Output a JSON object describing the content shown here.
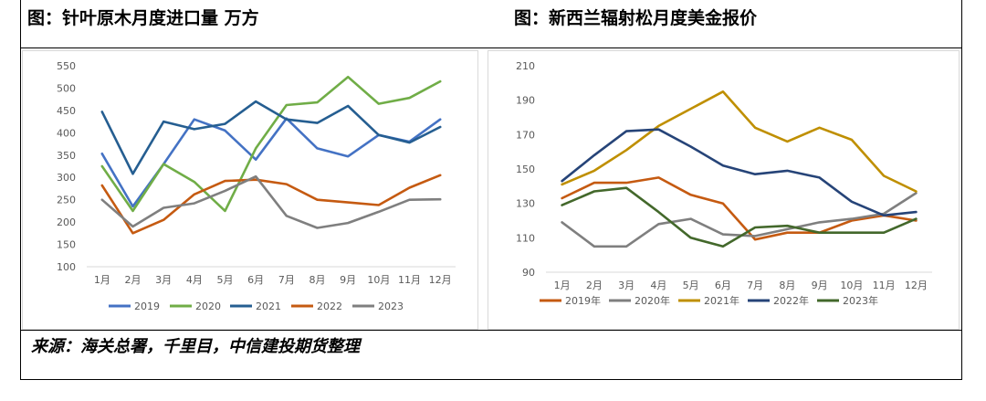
{
  "header": {
    "left_title": "图：针叶原木月度进口量  万方",
    "right_title": "图：新西兰辐射松月度美金报价"
  },
  "source_note": "来源：海关总署，千里目，中信建投期货整理",
  "chart_data": [
    {
      "type": "line",
      "title": "",
      "categories": [
        "1月",
        "2月",
        "3月",
        "4月",
        "5月",
        "6月",
        "7月",
        "8月",
        "9月",
        "10月",
        "11月",
        "12月"
      ],
      "ylim": [
        100,
        550
      ],
      "yticks": [
        100,
        150,
        200,
        250,
        300,
        350,
        400,
        450,
        500,
        550
      ],
      "grid": false,
      "legend": "bottom",
      "series": [
        {
          "name": "2019",
          "color": "#4472C4",
          "values": [
            353,
            235,
            330,
            430,
            405,
            340,
            432,
            365,
            347,
            395,
            380,
            430
          ]
        },
        {
          "name": "2020",
          "color": "#70AD47",
          "values": [
            325,
            225,
            330,
            290,
            225,
            365,
            462,
            468,
            525,
            465,
            478,
            515
          ]
        },
        {
          "name": "2021",
          "color": "#255E91",
          "values": [
            447,
            308,
            425,
            408,
            420,
            470,
            430,
            422,
            460,
            395,
            378,
            413
          ]
        },
        {
          "name": "2022",
          "color": "#C55A11",
          "values": [
            282,
            175,
            205,
            262,
            292,
            295,
            285,
            250,
            244,
            238,
            277,
            305
          ]
        },
        {
          "name": "2023",
          "color": "#7F7F7F",
          "values": [
            250,
            190,
            232,
            242,
            270,
            302,
            214,
            187,
            198,
            223,
            250,
            251
          ]
        }
      ]
    },
    {
      "type": "line",
      "title": "",
      "categories": [
        "1月",
        "2月",
        "3月",
        "4月",
        "5月",
        "6月",
        "7月",
        "8月",
        "9月",
        "10月",
        "11月",
        "12月"
      ],
      "ylim": [
        90,
        210
      ],
      "yticks": [
        90,
        110,
        130,
        150,
        170,
        190,
        210
      ],
      "grid": false,
      "legend": "bottom",
      "series": [
        {
          "name": "2019年",
          "color": "#C55A11",
          "values": [
            133,
            142,
            142,
            145,
            135,
            130,
            109,
            113,
            113,
            120,
            123,
            120
          ]
        },
        {
          "name": "2020年",
          "color": "#7F7F7F",
          "values": [
            119,
            105,
            105,
            118,
            121,
            112,
            111,
            115,
            119,
            121,
            124,
            136
          ]
        },
        {
          "name": "2021年",
          "color": "#BF8F00",
          "values": [
            141,
            149,
            161,
            175,
            185,
            195,
            174,
            166,
            174,
            167,
            146,
            137
          ]
        },
        {
          "name": "2022年",
          "color": "#264478",
          "values": [
            143,
            158,
            172,
            173,
            163,
            152,
            147,
            149,
            145,
            131,
            123,
            125
          ]
        },
        {
          "name": "2023年",
          "color": "#43682B",
          "values": [
            129,
            137,
            139,
            125,
            110,
            105,
            116,
            117,
            113,
            113,
            113,
            121
          ]
        }
      ]
    }
  ]
}
